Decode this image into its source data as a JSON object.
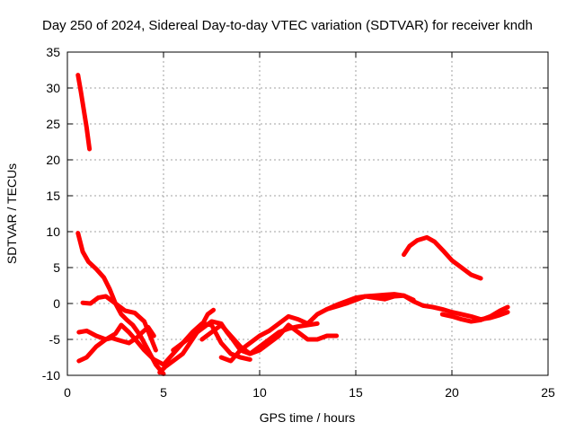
{
  "chart_data": {
    "type": "scatter",
    "title": "Day 250 of 2024, Sidereal Day-to-day VTEC variation (SDTVAR) for receiver kndh",
    "xlabel": "GPS time / hours",
    "ylabel": "SDTVAR / TECUs",
    "xlim": [
      0,
      25
    ],
    "ylim": [
      -10,
      35
    ],
    "xticks": [
      0,
      5,
      10,
      15,
      20,
      25
    ],
    "yticks": [
      -10,
      -5,
      0,
      5,
      10,
      15,
      20,
      25,
      30,
      35
    ],
    "grid": true,
    "marker": "+",
    "color": "#ff0000",
    "series": [
      {
        "name": "arc-1",
        "x": [
          0.55,
          0.7,
          0.85,
          1.0,
          1.15
        ],
        "y": [
          31.8,
          29.5,
          27,
          24.5,
          21.5
        ]
      },
      {
        "name": "arc-2",
        "x": [
          0.55,
          0.8,
          1.1,
          1.5,
          1.9,
          2.2,
          2.5,
          2.8,
          3.1,
          3.4,
          3.8,
          4.2,
          4.6,
          5.0
        ],
        "y": [
          9.8,
          7.2,
          5.8,
          4.8,
          3.6,
          2.0,
          0.0,
          -1.5,
          -2.3,
          -3.0,
          -4.5,
          -6.5,
          -8.5,
          -9.8
        ]
      },
      {
        "name": "arc-3",
        "x": [
          0.8,
          1.2,
          1.6,
          2.0,
          2.5,
          3.0,
          3.5,
          4.0,
          4.3,
          4.6
        ],
        "y": [
          0.1,
          0.0,
          0.8,
          1.0,
          0.0,
          -1.0,
          -1.3,
          -2.5,
          -4.5,
          -6.5
        ]
      },
      {
        "name": "arc-4",
        "x": [
          0.6,
          1.0,
          1.5,
          2.0,
          2.5,
          2.8,
          3.2,
          3.6,
          4.0,
          4.5,
          5.0,
          5.5,
          6.0,
          6.5,
          7.0,
          7.5,
          8.0,
          8.5,
          9.0,
          9.5
        ],
        "y": [
          -4.0,
          -3.8,
          -4.5,
          -5.0,
          -4.2,
          -3.0,
          -4.0,
          -5.2,
          -6.5,
          -7.8,
          -8.5,
          -7.0,
          -5.5,
          -4.0,
          -2.8,
          -3.0,
          -5.5,
          -7.0,
          -7.5,
          -7.8
        ]
      },
      {
        "name": "arc-5",
        "x": [
          0.6,
          1.0,
          1.5,
          2.0,
          2.3,
          2.8,
          3.2,
          3.6,
          3.9,
          4.2,
          4.5
        ],
        "y": [
          -8.0,
          -7.5,
          -6.0,
          -5.0,
          -4.8,
          -5.2,
          -5.5,
          -4.8,
          -4.0,
          -3.3,
          -4.5
        ]
      },
      {
        "name": "arc-6",
        "x": [
          4.8,
          5.1,
          5.5,
          6.0,
          6.5,
          7.0,
          7.3,
          7.6
        ],
        "y": [
          -9.6,
          -8.8,
          -8.0,
          -7.0,
          -5.0,
          -3.0,
          -1.5,
          -0.9
        ]
      },
      {
        "name": "arc-7",
        "x": [
          5.5,
          6.0,
          6.5,
          7.0,
          7.5,
          8.0,
          8.3,
          8.6,
          9.0,
          9.5,
          10.0,
          10.5,
          11.0,
          11.5,
          12.0,
          12.5,
          13.0
        ],
        "y": [
          -6.5,
          -5.5,
          -4.5,
          -3.5,
          -2.5,
          -2.8,
          -4.0,
          -5.0,
          -6.5,
          -7.0,
          -6.0,
          -5.0,
          -4.0,
          -3.5,
          -3.2,
          -3.0,
          -2.8
        ]
      },
      {
        "name": "arc-8",
        "x": [
          7.0,
          7.5,
          8.0,
          8.5,
          9.0,
          9.5,
          10.0,
          10.5,
          11.0,
          11.5,
          12.0,
          12.5,
          13.0,
          13.5,
          14.0
        ],
        "y": [
          -5.0,
          -4.0,
          -3.0,
          -4.5,
          -6.0,
          -7.0,
          -6.5,
          -5.5,
          -4.5,
          -3.0,
          -4.0,
          -5.0,
          -5.0,
          -4.5,
          -4.5
        ]
      },
      {
        "name": "arc-9",
        "x": [
          8.0,
          8.5,
          9.0,
          9.5,
          10.0,
          10.5,
          11.0,
          11.5,
          12.0,
          12.5,
          13.0,
          13.5,
          14.0,
          14.5,
          15.0,
          15.5,
          16.0,
          16.5,
          17.0,
          17.5,
          18.0
        ],
        "y": [
          -7.5,
          -8.0,
          -6.5,
          -5.5,
          -4.5,
          -3.8,
          -2.8,
          -1.8,
          -2.2,
          -2.8,
          -1.5,
          -0.8,
          -0.2,
          0.3,
          0.8,
          1.0,
          0.8,
          0.6,
          1.0,
          1.1,
          0.5
        ]
      },
      {
        "name": "arc-10",
        "x": [
          13.5,
          14.0,
          14.5,
          15.0,
          15.5,
          16.0,
          16.5,
          17.0,
          17.5,
          18.0,
          18.5,
          19.0,
          19.5,
          20.0,
          20.5,
          21.0,
          21.5,
          22.0,
          22.5,
          22.9
        ],
        "y": [
          -0.8,
          -0.4,
          0.0,
          0.5,
          1.0,
          1.1,
          1.2,
          1.3,
          1.1,
          0.3,
          -0.3,
          -0.5,
          -0.8,
          -1.2,
          -1.5,
          -1.8,
          -2.2,
          -2.0,
          -1.6,
          -1.2
        ]
      },
      {
        "name": "arc-11",
        "x": [
          19.5,
          20.0,
          20.5,
          21.0,
          21.5,
          22.0,
          22.5,
          22.9
        ],
        "y": [
          -1.5,
          -1.8,
          -2.2,
          -2.5,
          -2.3,
          -1.8,
          -1.0,
          -0.5
        ]
      },
      {
        "name": "arc-12",
        "x": [
          17.5,
          17.8,
          18.2,
          18.7,
          19.1,
          19.6,
          20.0,
          20.5,
          21.0,
          21.5
        ],
        "y": [
          6.8,
          8.0,
          8.8,
          9.2,
          8.6,
          7.2,
          6.0,
          5.0,
          4.0,
          3.5
        ]
      }
    ]
  }
}
